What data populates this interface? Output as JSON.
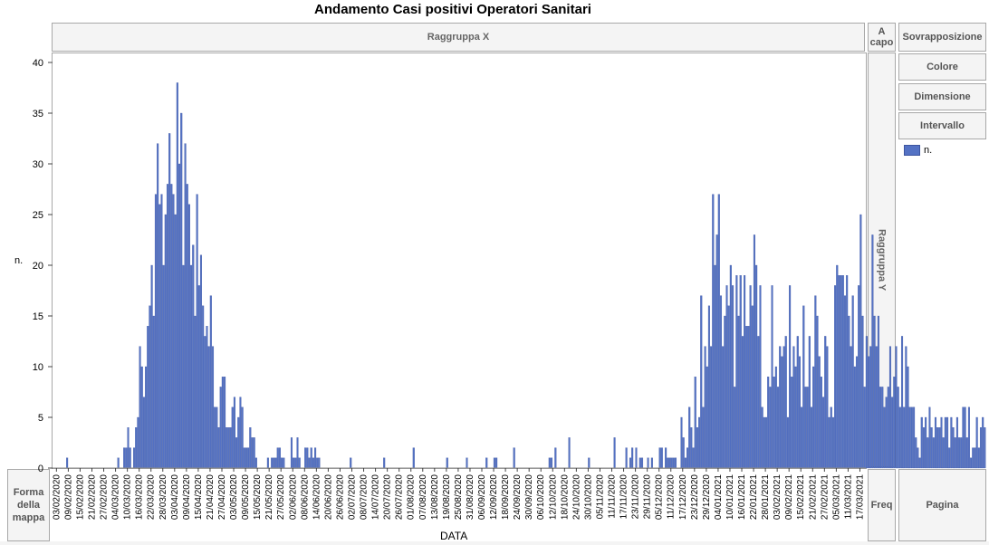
{
  "title": "Andamento Casi positivi Operatori Sanitari",
  "zones": {
    "group_x": "Raggruppa X",
    "wrap": "A capo",
    "group_y": "Raggruppa Y",
    "map_shape": "Forma della mappa",
    "freq": "Freq",
    "page": "Pagina"
  },
  "side_buttons": {
    "overlay": "Sovrapposizione",
    "color": "Colore",
    "size": "Dimensione",
    "interval": "Intervallo"
  },
  "legend": {
    "label": "n.",
    "color": "#5472c4"
  },
  "chart_data": {
    "type": "bar",
    "xlabel": "DATA",
    "ylabel": "n.",
    "ylim": [
      0,
      40
    ],
    "yticks": [
      0,
      5,
      10,
      15,
      20,
      25,
      30,
      35,
      40
    ],
    "start_date": "2020-02-01",
    "xticks": [
      "03/02/2020",
      "09/02/2020",
      "15/02/2020",
      "21/02/2020",
      "27/02/2020",
      "04/03/2020",
      "10/03/2020",
      "16/03/2020",
      "22/03/2020",
      "28/03/2020",
      "03/04/2020",
      "09/04/2020",
      "15/04/2020",
      "21/04/2020",
      "27/04/2020",
      "03/05/2020",
      "09/05/2020",
      "15/05/2020",
      "21/05/2020",
      "27/05/2020",
      "02/06/2020",
      "08/06/2020",
      "14/06/2020",
      "20/06/2020",
      "26/06/2020",
      "02/07/2020",
      "08/07/2020",
      "14/07/2020",
      "20/07/2020",
      "26/07/2020",
      "01/08/2020",
      "07/08/2020",
      "13/08/2020",
      "19/08/2020",
      "25/08/2020",
      "31/08/2020",
      "06/09/2020",
      "12/09/2020",
      "18/09/2020",
      "24/09/2020",
      "30/09/2020",
      "06/10/2020",
      "12/10/2020",
      "18/10/2020",
      "24/10/2020",
      "30/10/2020",
      "05/11/2020",
      "11/11/2020",
      "17/11/2020",
      "23/11/2020",
      "29/11/2020",
      "05/12/2020",
      "11/12/2020",
      "17/12/2020",
      "23/12/2020",
      "29/12/2020",
      "04/01/2021",
      "10/01/2021",
      "16/01/2021",
      "22/01/2021",
      "28/01/2021",
      "03/02/2021",
      "09/02/2021",
      "15/02/2021",
      "21/02/2021",
      "27/02/2021",
      "05/03/2021",
      "11/03/2021",
      "17/03/2021"
    ],
    "values": [
      0,
      0,
      0,
      0,
      0,
      0,
      0,
      1,
      0,
      0,
      0,
      0,
      0,
      0,
      0,
      0,
      0,
      0,
      0,
      0,
      0,
      0,
      0,
      0,
      0,
      0,
      0,
      0,
      0,
      0,
      0,
      0,
      0,
      1,
      0,
      0,
      2,
      2,
      4,
      2,
      0,
      2,
      4,
      5,
      12,
      10,
      7,
      10,
      14,
      16,
      20,
      15,
      27,
      32,
      26,
      27,
      20,
      25,
      28,
      33,
      28,
      27,
      25,
      38,
      30,
      35,
      20,
      32,
      28,
      26,
      20,
      22,
      15,
      27,
      18,
      21,
      16,
      13,
      14,
      12,
      17,
      12,
      6,
      6,
      4,
      8,
      9,
      9,
      4,
      4,
      4,
      6,
      7,
      3,
      5,
      7,
      6,
      2,
      2,
      2,
      4,
      3,
      3,
      1,
      0,
      0,
      0,
      0,
      0,
      1,
      0,
      1,
      1,
      1,
      2,
      2,
      1,
      1,
      0,
      0,
      0,
      3,
      1,
      1,
      3,
      1,
      0,
      0,
      2,
      2,
      1,
      2,
      1,
      2,
      1,
      1,
      0,
      0,
      0,
      0,
      0,
      0,
      0,
      0,
      0,
      0,
      0,
      0,
      0,
      0,
      0,
      1,
      0,
      0,
      0,
      0,
      0,
      0,
      0,
      0,
      0,
      0,
      0,
      0,
      0,
      0,
      0,
      0,
      1,
      0,
      0,
      0,
      0,
      0,
      0,
      0,
      0,
      0,
      0,
      0,
      0,
      0,
      0,
      2,
      0,
      0,
      0,
      0,
      0,
      0,
      0,
      0,
      0,
      0,
      0,
      0,
      0,
      0,
      0,
      0,
      1,
      0,
      0,
      0,
      0,
      0,
      0,
      0,
      0,
      0,
      1,
      0,
      0,
      0,
      0,
      0,
      0,
      0,
      0,
      0,
      1,
      0,
      0,
      0,
      1,
      1,
      0,
      0,
      0,
      0,
      0,
      0,
      0,
      0,
      2,
      0,
      0,
      0,
      0,
      0,
      0,
      0,
      0,
      0,
      0,
      0,
      0,
      0,
      0,
      0,
      0,
      0,
      1,
      1,
      0,
      2,
      0,
      0,
      0,
      0,
      0,
      0,
      3,
      0,
      0,
      0,
      0,
      0,
      0,
      0,
      0,
      0,
      1,
      0,
      0,
      0,
      0,
      0,
      0,
      0,
      0,
      0,
      0,
      0,
      0,
      3,
      0,
      0,
      0,
      0,
      0,
      2,
      0,
      1,
      2,
      0,
      2,
      0,
      1,
      1,
      0,
      0,
      1,
      0,
      1,
      0,
      0,
      0,
      2,
      2,
      0,
      2,
      1,
      1,
      1,
      1,
      1,
      0,
      0,
      5,
      3,
      1,
      2,
      6,
      4,
      2,
      9,
      4,
      5,
      17,
      6,
      12,
      10,
      16,
      12,
      27,
      20,
      23,
      27,
      17,
      12,
      15,
      18,
      16,
      20,
      18,
      8,
      19,
      15,
      19,
      13,
      19,
      14,
      14,
      18,
      16,
      23,
      20,
      13,
      18,
      6,
      5,
      5,
      9,
      8,
      18,
      9,
      10,
      8,
      12,
      11,
      12,
      13,
      5,
      18,
      9,
      12,
      10,
      13,
      11,
      6,
      16,
      8,
      8,
      13,
      6,
      10,
      17,
      15,
      11,
      9,
      7,
      13,
      12,
      5,
      6,
      5,
      18,
      20,
      19,
      19,
      19,
      17,
      19,
      15,
      12,
      17,
      10,
      11,
      18,
      25,
      15,
      8,
      13,
      11,
      12,
      23,
      15,
      12,
      15,
      8,
      8,
      6,
      7,
      8,
      12,
      7,
      9,
      12,
      8,
      6,
      13,
      6,
      12,
      10,
      6,
      6,
      6,
      3,
      2,
      1,
      5,
      4,
      5,
      3,
      6,
      4,
      3,
      5,
      4,
      4,
      5,
      3,
      5,
      5,
      2,
      5,
      4,
      3,
      5,
      3,
      3,
      6,
      6,
      3,
      6,
      1,
      2,
      2,
      5,
      2,
      4,
      5,
      4,
      0,
      0,
      0,
      1,
      0,
      0,
      0,
      0,
      0,
      0,
      0,
      0,
      0,
      0,
      0,
      0,
      0,
      0,
      0,
      0,
      0,
      0,
      0,
      0,
      0
    ]
  }
}
